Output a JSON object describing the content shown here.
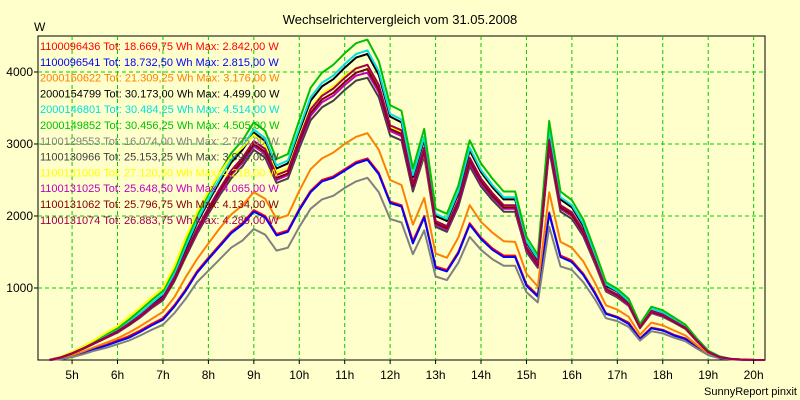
{
  "chart_data": {
    "type": "line",
    "title": "Wechselrichtervergleich vom 31.05.2008",
    "ylabel": "W",
    "footer": "SunnyReport pinxit",
    "xlim": [
      4.25,
      20.25
    ],
    "ylim": [
      0,
      4500
    ],
    "grid": true,
    "legend_position": "top-left inside",
    "x_ticks": [
      5,
      6,
      7,
      8,
      9,
      10,
      11,
      12,
      13,
      14,
      15,
      16,
      17,
      18,
      19,
      20
    ],
    "x_tick_labels": [
      "5h",
      "6h",
      "7h",
      "8h",
      "9h",
      "10h",
      "11h",
      "12h",
      "13h",
      "14h",
      "15h",
      "16h",
      "17h",
      "18h",
      "19h",
      "20h"
    ],
    "y_ticks": [
      1000,
      2000,
      3000,
      4000
    ],
    "y_tick_labels": [
      "1000",
      "2000",
      "3000",
      "4000"
    ],
    "x": [
      4.5,
      4.75,
      5,
      5.25,
      5.5,
      5.75,
      6,
      6.25,
      6.5,
      6.75,
      7,
      7.25,
      7.5,
      7.75,
      8,
      8.25,
      8.5,
      8.75,
      9,
      9.25,
      9.5,
      9.75,
      10,
      10.25,
      10.5,
      10.75,
      11,
      11.25,
      11.5,
      11.75,
      12,
      12.25,
      12.5,
      12.75,
      13,
      13.25,
      13.5,
      13.75,
      14,
      14.25,
      14.5,
      14.75,
      15,
      15.25,
      15.5,
      15.75,
      16,
      16.25,
      16.5,
      16.75,
      17,
      17.25,
      17.5,
      17.75,
      18,
      18.25,
      18.5,
      18.75,
      19,
      19.25,
      19.5,
      19.75,
      20,
      20.25
    ],
    "series": [
      {
        "name": "1100096436",
        "legend": "1100096436 Tot: 18.669,75 Wh Max: 2.842,00 W",
        "color": "#ff0000",
        "values": [
          0,
          20,
          60,
          110,
          160,
          210,
          270,
          330,
          410,
          500,
          580,
          760,
          980,
          1230,
          1420,
          1600,
          1780,
          1900,
          2080,
          2000,
          1750,
          1800,
          2100,
          2350,
          2500,
          2550,
          2650,
          2750,
          2800,
          2600,
          2200,
          2150,
          1650,
          2000,
          1300,
          1250,
          1500,
          1900,
          1700,
          1550,
          1450,
          1450,
          1050,
          900,
          2050,
          1450,
          1380,
          1200,
          950,
          650,
          600,
          520,
          300,
          450,
          420,
          350,
          300,
          180,
          80,
          30,
          10,
          5,
          0,
          0
        ]
      },
      {
        "name": "1100096541",
        "legend": "1100096541 Tot: 18.732,50 Wh Max: 2.815,00 W",
        "color": "#0000ff",
        "values": [
          0,
          15,
          55,
          105,
          150,
          200,
          255,
          310,
          390,
          480,
          560,
          740,
          960,
          1210,
          1400,
          1580,
          1760,
          1880,
          2060,
          1980,
          1730,
          1780,
          2080,
          2330,
          2480,
          2530,
          2630,
          2730,
          2780,
          2580,
          2180,
          2130,
          1620,
          1980,
          1280,
          1230,
          1480,
          1880,
          1680,
          1530,
          1430,
          1430,
          1030,
          880,
          2030,
          1430,
          1360,
          1180,
          930,
          640,
          590,
          500,
          290,
          440,
          410,
          340,
          290,
          170,
          70,
          25,
          8,
          3,
          0,
          0
        ]
      },
      {
        "name": "2000150622",
        "legend": "2000150622 Tot: 21.309,25 Wh Max: 3.176,00 W",
        "color": "#ff8000",
        "values": [
          0,
          25,
          70,
          120,
          180,
          240,
          300,
          380,
          470,
          570,
          670,
          870,
          1150,
          1400,
          1620,
          1830,
          2020,
          2150,
          2330,
          2240,
          1960,
          2010,
          2350,
          2650,
          2800,
          2880,
          3000,
          3100,
          3150,
          2920,
          2500,
          2430,
          1880,
          2250,
          1480,
          1420,
          1700,
          2150,
          1920,
          1770,
          1650,
          1640,
          1200,
          1020,
          2330,
          1640,
          1560,
          1370,
          1080,
          760,
          700,
          600,
          350,
          520,
          480,
          410,
          340,
          210,
          90,
          35,
          12,
          5,
          0,
          0
        ]
      },
      {
        "name": "2000154799",
        "legend": "2000154799 Tot: 30.173,00 Wh Max: 4.499,00 W",
        "color": "#000000",
        "values": [
          0,
          40,
          100,
          170,
          250,
          330,
          410,
          520,
          640,
          780,
          900,
          1180,
          1550,
          1900,
          2200,
          2480,
          2740,
          2920,
          3160,
          3040,
          2660,
          2730,
          3180,
          3600,
          3800,
          3900,
          4060,
          4200,
          4250,
          3960,
          3380,
          3300,
          2540,
          3060,
          2000,
          1930,
          2310,
          2910,
          2610,
          2400,
          2230,
          2230,
          1630,
          1390,
          3160,
          2230,
          2120,
          1860,
          1460,
          1030,
          950,
          810,
          480,
          700,
          650,
          560,
          460,
          280,
          120,
          45,
          15,
          5,
          0,
          0
        ]
      },
      {
        "name": "2000146801",
        "legend": "2000146801 Tot: 30.484,25 Wh Max: 4.514,00 W",
        "color": "#00e0e0",
        "values": [
          0,
          40,
          100,
          175,
          255,
          340,
          420,
          530,
          650,
          790,
          920,
          1200,
          1580,
          1930,
          2230,
          2520,
          2780,
          2960,
          3200,
          3080,
          2700,
          2770,
          3220,
          3650,
          3850,
          3950,
          4110,
          4250,
          4300,
          4010,
          3420,
          3340,
          2570,
          3100,
          2030,
          1960,
          2340,
          2950,
          2640,
          2430,
          2260,
          2260,
          1650,
          1410,
          3200,
          2260,
          2150,
          1890,
          1480,
          1050,
          960,
          820,
          490,
          710,
          660,
          570,
          470,
          290,
          120,
          45,
          15,
          5,
          0,
          0
        ]
      },
      {
        "name": "2000149852",
        "legend": "2000149852 Tot: 30.456,25 Wh Max: 4.505,00 W",
        "color": "#00c000",
        "values": [
          0,
          45,
          110,
          190,
          270,
          360,
          440,
          560,
          690,
          830,
          960,
          1250,
          1640,
          2000,
          2300,
          2600,
          2870,
          3050,
          3300,
          3180,
          2790,
          2860,
          3330,
          3780,
          3990,
          4100,
          4260,
          4400,
          4450,
          4150,
          3540,
          3460,
          2660,
          3210,
          2100,
          2030,
          2420,
          3050,
          2730,
          2520,
          2340,
          2340,
          1710,
          1460,
          3320,
          2340,
          2220,
          1950,
          1530,
          1080,
          990,
          850,
          500,
          740,
          690,
          590,
          490,
          300,
          130,
          50,
          16,
          6,
          0,
          0
        ]
      },
      {
        "name": "1100129553",
        "legend": "1100129553 Tot: 16.074,00 Wh Max: 2.705,00 W",
        "color": "#808080",
        "values": [
          0,
          10,
          40,
          80,
          130,
          170,
          220,
          270,
          340,
          420,
          490,
          650,
          850,
          1080,
          1240,
          1400,
          1560,
          1660,
          1820,
          1740,
          1520,
          1560,
          1850,
          2100,
          2230,
          2280,
          2390,
          2480,
          2530,
          2330,
          1960,
          1910,
          1470,
          1800,
          1160,
          1110,
          1350,
          1710,
          1530,
          1400,
          1310,
          1310,
          940,
          800,
          1850,
          1300,
          1250,
          1080,
          850,
          580,
          540,
          460,
          270,
          400,
          370,
          310,
          260,
          160,
          70,
          25,
          8,
          3,
          0,
          0
        ]
      },
      {
        "name": "1100130966",
        "legend": "1100130966 Tot: 25.153,25 Wh Max: 3.994,00 W",
        "color": "#404040",
        "values": [
          0,
          35,
          90,
          155,
          230,
          305,
          380,
          480,
          590,
          720,
          830,
          1090,
          1430,
          1750,
          2030,
          2290,
          2520,
          2690,
          2920,
          2810,
          2460,
          2520,
          2940,
          3330,
          3510,
          3600,
          3750,
          3880,
          3920,
          3650,
          3120,
          3050,
          2340,
          2830,
          1850,
          1780,
          2130,
          2690,
          2410,
          2220,
          2060,
          2060,
          1500,
          1280,
          2920,
          2060,
          1960,
          1720,
          1350,
          950,
          870,
          750,
          440,
          650,
          600,
          520,
          430,
          260,
          110,
          40,
          14,
          5,
          0,
          0
        ]
      },
      {
        "name": "1100131006",
        "legend": "1100131006 Tot: 27.120,50 Wh Max: 4.218,00 W",
        "color": "#ffff00",
        "values": [
          0,
          45,
          110,
          190,
          280,
          380,
          470,
          600,
          730,
          870,
          1000,
          1300,
          1700,
          2050,
          2340,
          2600,
          2820,
          2950,
          3130,
          2980,
          2600,
          2660,
          3100,
          3500,
          3700,
          3800,
          3950,
          4060,
          4100,
          3800,
          3240,
          3160,
          2420,
          2870,
          1900,
          1820,
          2180,
          2760,
          2470,
          2270,
          2110,
          2110,
          1540,
          1310,
          2990,
          2110,
          2000,
          1760,
          1380,
          970,
          890,
          760,
          450,
          660,
          610,
          530,
          440,
          260,
          110,
          40,
          14,
          5,
          0,
          0
        ]
      },
      {
        "name": "1100131025",
        "legend": "1100131025 Tot: 25.648,50 Wh Max: 4.065,00 W",
        "color": "#c000c0",
        "values": [
          0,
          35,
          90,
          160,
          235,
          310,
          390,
          490,
          600,
          730,
          850,
          1110,
          1460,
          1780,
          2060,
          2330,
          2570,
          2740,
          2970,
          2860,
          2500,
          2570,
          3000,
          3390,
          3580,
          3670,
          3820,
          3950,
          3990,
          3720,
          3180,
          3110,
          2390,
          2880,
          1880,
          1810,
          2170,
          2740,
          2450,
          2260,
          2100,
          2100,
          1530,
          1300,
          2970,
          2100,
          2000,
          1750,
          1380,
          970,
          890,
          760,
          450,
          660,
          610,
          530,
          440,
          260,
          110,
          40,
          14,
          5,
          0,
          0
        ]
      },
      {
        "name": "1100131062",
        "legend": "1100131062 Tot: 25.796,75 Wh Max: 4.134,00 W",
        "color": "#800000",
        "values": [
          0,
          35,
          90,
          160,
          235,
          315,
          395,
          495,
          610,
          740,
          860,
          1120,
          1470,
          1800,
          2080,
          2350,
          2590,
          2770,
          3000,
          2890,
          2530,
          2590,
          3030,
          3430,
          3620,
          3710,
          3860,
          3990,
          4040,
          3760,
          3210,
          3140,
          2410,
          2910,
          1900,
          1830,
          2190,
          2770,
          2480,
          2280,
          2120,
          2120,
          1550,
          1320,
          3000,
          2120,
          2020,
          1770,
          1390,
          980,
          900,
          770,
          450,
          670,
          620,
          530,
          440,
          270,
          110,
          40,
          14,
          5,
          0,
          0
        ]
      },
      {
        "name": "1100131074",
        "legend": "1100131074 Tot: 26.883,75 Wh Max: 4.289,00 W",
        "color": "#a00050",
        "values": [
          0,
          35,
          95,
          165,
          240,
          320,
          400,
          505,
          620,
          750,
          870,
          1140,
          1490,
          1820,
          2110,
          2380,
          2630,
          2810,
          3040,
          2930,
          2570,
          2630,
          3070,
          3480,
          3670,
          3770,
          3920,
          4050,
          4100,
          3820,
          3260,
          3190,
          2450,
          2950,
          1930,
          1860,
          2220,
          2810,
          2520,
          2320,
          2150,
          2150,
          1570,
          1340,
          3050,
          2150,
          2050,
          1800,
          1410,
          990,
          910,
          780,
          460,
          680,
          630,
          540,
          450,
          270,
          110,
          40,
          14,
          5,
          0,
          0
        ]
      }
    ]
  }
}
